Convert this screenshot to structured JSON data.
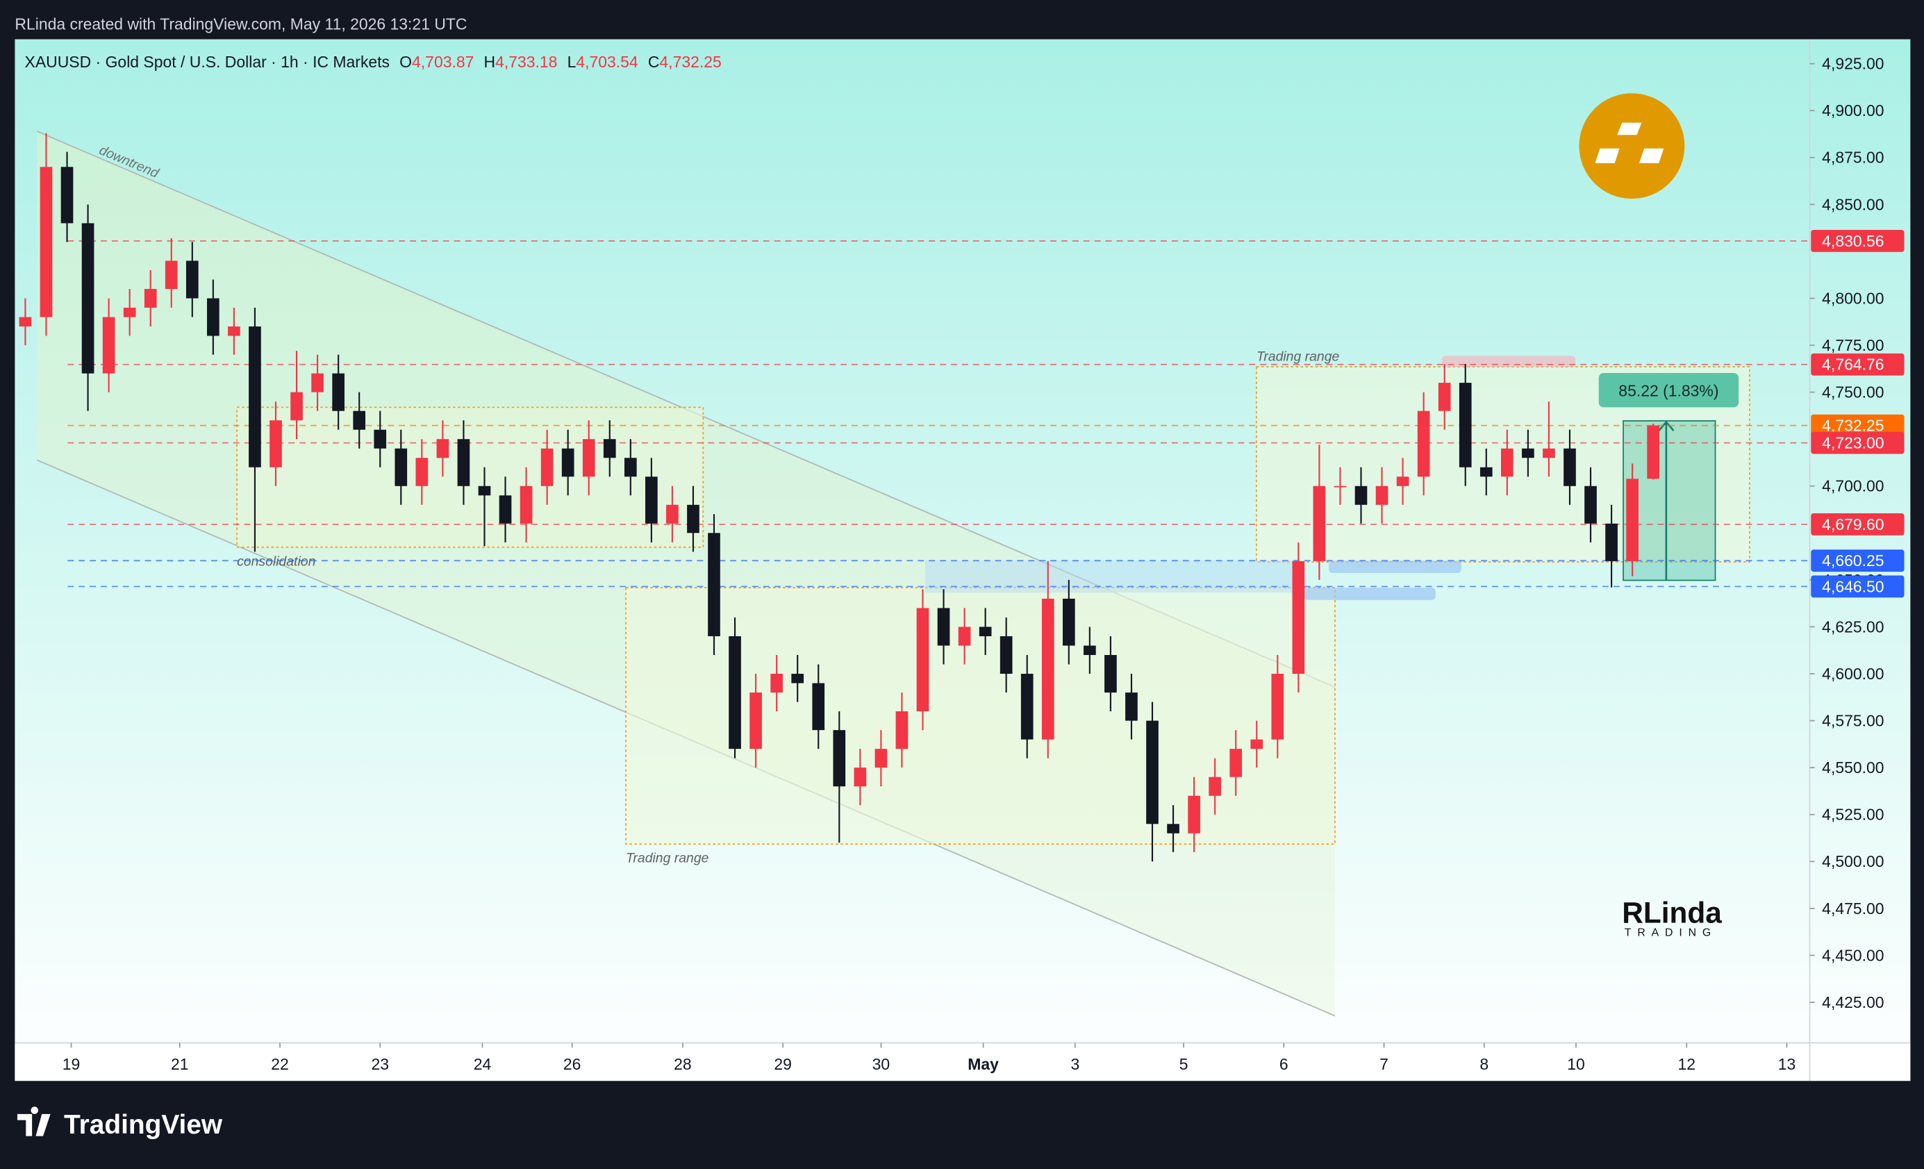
{
  "header": "RLinda created with TradingView.com, May 11, 2026 13:21 UTC",
  "brand": "TradingView",
  "watermark": {
    "name": "RLinda",
    "sub": "TRADING"
  },
  "chart_data": {
    "type": "candlestick",
    "symbol": "XAUUSD · Gold Spot / U.S. Dollar · 1h · IC Markets",
    "ohlc_legend": [
      {
        "key": "O",
        "value": "4,703.87"
      },
      {
        "key": "H",
        "value": "4,733.18"
      },
      {
        "key": "L",
        "value": "4,703.54"
      },
      {
        "key": "C",
        "value": "4,732.25"
      }
    ],
    "up_color": "#f23645",
    "down_color": "#131722",
    "open": [
      4785,
      4790,
      4870,
      4840,
      4760,
      4790,
      4795,
      4805,
      4820,
      4800,
      4780,
      4785,
      4710,
      4735,
      4750,
      4760,
      4740,
      4730,
      4720,
      4700,
      4715,
      4725,
      4700,
      4695,
      4680,
      4700,
      4720,
      4705,
      4725,
      4715,
      4705,
      4680,
      4690,
      4675,
      4620,
      4560,
      4590,
      4600,
      4595,
      4570,
      4540,
      4550,
      4560,
      4580,
      4635,
      4615,
      4625,
      4620,
      4600,
      4565,
      4640,
      4615,
      4610,
      4590,
      4575,
      4520,
      4515,
      4535,
      4545,
      4560,
      4565,
      4600,
      4660,
      4700,
      4700,
      4690,
      4700,
      4705,
      4740,
      4755,
      4710,
      4705,
      4720,
      4715,
      4720,
      4700,
      4680,
      4660,
      4703.87
    ],
    "high": [
      4800,
      4888,
      4878,
      4850,
      4800,
      4805,
      4815,
      4832,
      4830,
      4810,
      4795,
      4795,
      4745,
      4772,
      4770,
      4770,
      4750,
      4740,
      4730,
      4725,
      4735,
      4735,
      4710,
      4705,
      4710,
      4730,
      4730,
      4735,
      4735,
      4725,
      4715,
      4700,
      4700,
      4685,
      4630,
      4600,
      4610,
      4610,
      4605,
      4580,
      4560,
      4570,
      4590,
      4645,
      4645,
      4635,
      4635,
      4630,
      4610,
      4660,
      4650,
      4625,
      4620,
      4600,
      4585,
      4530,
      4545,
      4555,
      4570,
      4575,
      4610,
      4670,
      4722,
      4710,
      4710,
      4710,
      4715,
      4750,
      4765,
      4765,
      4720,
      4730,
      4730,
      4745,
      4730,
      4710,
      4690,
      4712,
      4733.18
    ],
    "low": [
      4775,
      4780,
      4830,
      4740,
      4750,
      4780,
      4785,
      4795,
      4790,
      4770,
      4770,
      4665,
      4700,
      4725,
      4740,
      4730,
      4720,
      4710,
      4690,
      4690,
      4705,
      4690,
      4668,
      4670,
      4670,
      4690,
      4695,
      4695,
      4705,
      4695,
      4670,
      4670,
      4665,
      4610,
      4555,
      4550,
      4580,
      4585,
      4560,
      4510,
      4530,
      4540,
      4550,
      4570,
      4605,
      4605,
      4610,
      4590,
      4555,
      4555,
      4605,
      4600,
      4580,
      4565,
      4500,
      4505,
      4505,
      4525,
      4535,
      4550,
      4555,
      4590,
      4650,
      4690,
      4680,
      4680,
      4690,
      4695,
      4730,
      4700,
      4695,
      4695,
      4705,
      4705,
      4690,
      4670,
      4646,
      4652,
      4703.54
    ],
    "close": [
      4790,
      4870,
      4840,
      4760,
      4790,
      4795,
      4805,
      4820,
      4800,
      4780,
      4785,
      4710,
      4735,
      4750,
      4760,
      4740,
      4730,
      4720,
      4700,
      4715,
      4725,
      4700,
      4695,
      4680,
      4700,
      4720,
      4705,
      4725,
      4715,
      4705,
      4680,
      4690,
      4675,
      4620,
      4560,
      4590,
      4600,
      4595,
      4570,
      4540,
      4550,
      4560,
      4580,
      4635,
      4615,
      4625,
      4620,
      4600,
      4565,
      4640,
      4615,
      4610,
      4590,
      4575,
      4520,
      4515,
      4535,
      4545,
      4560,
      4565,
      4600,
      4660,
      4700,
      4700,
      4690,
      4700,
      4705,
      4740,
      4755,
      4710,
      4705,
      4720,
      4715,
      4720,
      4700,
      4680,
      4660,
      4703.87,
      4732.25
    ],
    "ylim": [
      4403.4,
      4938
    ],
    "yticks": [
      {
        "value": 4425,
        "label": "4,425.00"
      },
      {
        "value": 4450,
        "label": "4,450.00"
      },
      {
        "value": 4475,
        "label": "4,475.00"
      },
      {
        "value": 4500,
        "label": "4,500.00"
      },
      {
        "value": 4525,
        "label": "4,525.00"
      },
      {
        "value": 4550,
        "label": "4,550.00"
      },
      {
        "value": 4575,
        "label": "4,575.00"
      },
      {
        "value": 4600,
        "label": "4,600.00"
      },
      {
        "value": 4625,
        "label": "4,625.00"
      },
      {
        "value": 4650,
        "label": "4,650.00"
      },
      {
        "value": 4700,
        "label": "4,700.00"
      },
      {
        "value": 4750,
        "label": "4,750.00"
      },
      {
        "value": 4775,
        "label": "4,775.00"
      },
      {
        "value": 4800,
        "label": "4,800.00"
      },
      {
        "value": 4850,
        "label": "4,850.00"
      },
      {
        "value": 4875,
        "label": "4,875.00"
      },
      {
        "value": 4900,
        "label": "4,900.00"
      },
      {
        "value": 4925,
        "label": "4,925.00"
      }
    ],
    "xlim": [
      0,
      86
    ],
    "xticks": [
      {
        "value": 2.7,
        "label": "19"
      },
      {
        "value": 7.9,
        "label": "21"
      },
      {
        "value": 12.7,
        "label": "22"
      },
      {
        "value": 17.5,
        "label": "23"
      },
      {
        "value": 22.4,
        "label": "24"
      },
      {
        "value": 26.7,
        "label": "26"
      },
      {
        "value": 32,
        "label": "28"
      },
      {
        "value": 36.8,
        "label": "29"
      },
      {
        "value": 41.5,
        "label": "30"
      },
      {
        "value": 46.4,
        "label": "May"
      },
      {
        "value": 50.8,
        "label": "3"
      },
      {
        "value": 56,
        "label": "5"
      },
      {
        "value": 60.8,
        "label": "6"
      },
      {
        "value": 65.6,
        "label": "7"
      },
      {
        "value": 70.4,
        "label": "8"
      },
      {
        "value": 74.8,
        "label": "10"
      },
      {
        "value": 80.1,
        "label": "12"
      },
      {
        "value": 84.9,
        "label": "13"
      }
    ],
    "levels": [
      {
        "value": 4830.56,
        "label": "4,830.56",
        "color": "#f23645"
      },
      {
        "value": 4764.76,
        "label": "4,764.76",
        "color": "#f23645"
      },
      {
        "value": 4732.25,
        "label": "4,732.25",
        "color": "#ff6d00"
      },
      {
        "value": 4723,
        "label": "4,723.00",
        "color": "#f23645"
      },
      {
        "value": 4679.6,
        "label": "4,679.60",
        "color": "#f23645"
      },
      {
        "value": 4660.25,
        "label": "4,660.25",
        "color": "#2962ff"
      },
      {
        "value": 4646.5,
        "label": "4,646.50",
        "color": "#2962ff"
      }
    ],
    "annotations": [
      "downtrend",
      "consolidation",
      "Trading range",
      "Trading range"
    ],
    "measure": "85.22 (1.83%)"
  }
}
